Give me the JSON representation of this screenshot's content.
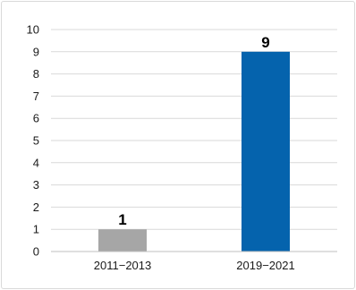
{
  "chart_data": {
    "type": "bar",
    "categories": [
      "2011−2013",
      "2019−2021"
    ],
    "values": [
      1,
      9
    ],
    "data_labels": [
      "1",
      "9"
    ],
    "bar_colors": [
      "#a6a6a6",
      "#0563ad"
    ],
    "ylim": [
      0,
      10
    ],
    "yticks": [
      "0",
      "1",
      "2",
      "3",
      "4",
      "5",
      "6",
      "7",
      "8",
      "9",
      "10"
    ],
    "grid": true,
    "legend": "none"
  }
}
